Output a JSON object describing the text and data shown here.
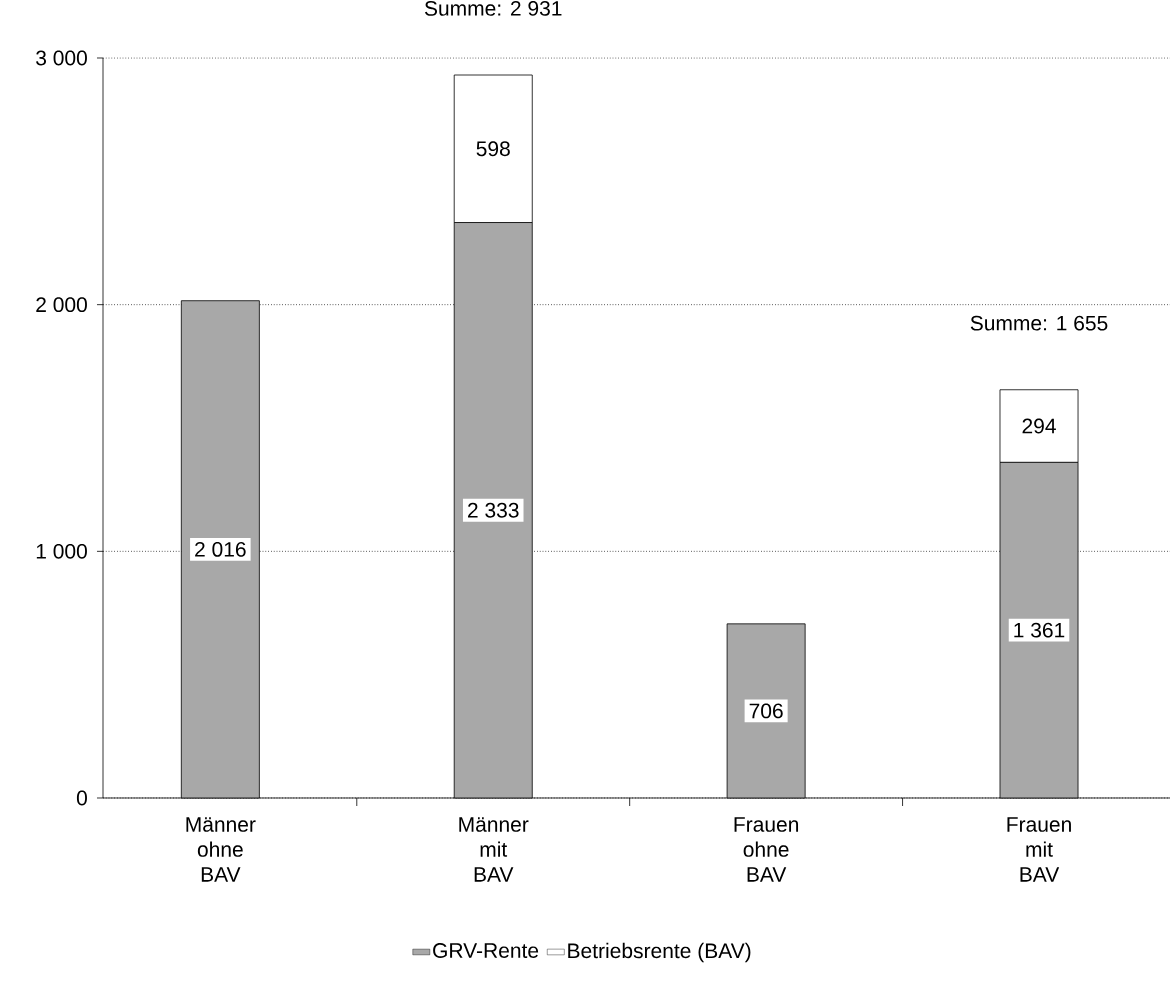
{
  "chart_data": {
    "type": "bar",
    "stacked": true,
    "categories": [
      "Männer ohne BAV",
      "Männer mit BAV",
      "Frauen ohne BAV",
      "Frauen mit BAV"
    ],
    "series": [
      {
        "name": "GRV-Rente",
        "color": "#a8a8a8",
        "values": [
          2016,
          2333,
          706,
          1361
        ],
        "value_labels": [
          "2 016",
          "2 333",
          "706",
          "1 361"
        ]
      },
      {
        "name": "Betriebsrente (BAV)",
        "color": "#ffffff",
        "values": [
          null,
          598,
          null,
          294
        ],
        "value_labels": [
          null,
          "598",
          null,
          "294"
        ]
      }
    ],
    "totals": [
      null,
      "Summe: 2 931",
      null,
      "Summe: 1 655"
    ],
    "ylim": [
      0,
      3000
    ],
    "yticks": [
      {
        "value": 0,
        "label": "0"
      },
      {
        "value": 1000,
        "label": "1 000"
      },
      {
        "value": 2000,
        "label": "2 000"
      },
      {
        "value": 3000,
        "label": "3 000"
      }
    ],
    "grid": "y",
    "legend": "bottom"
  }
}
